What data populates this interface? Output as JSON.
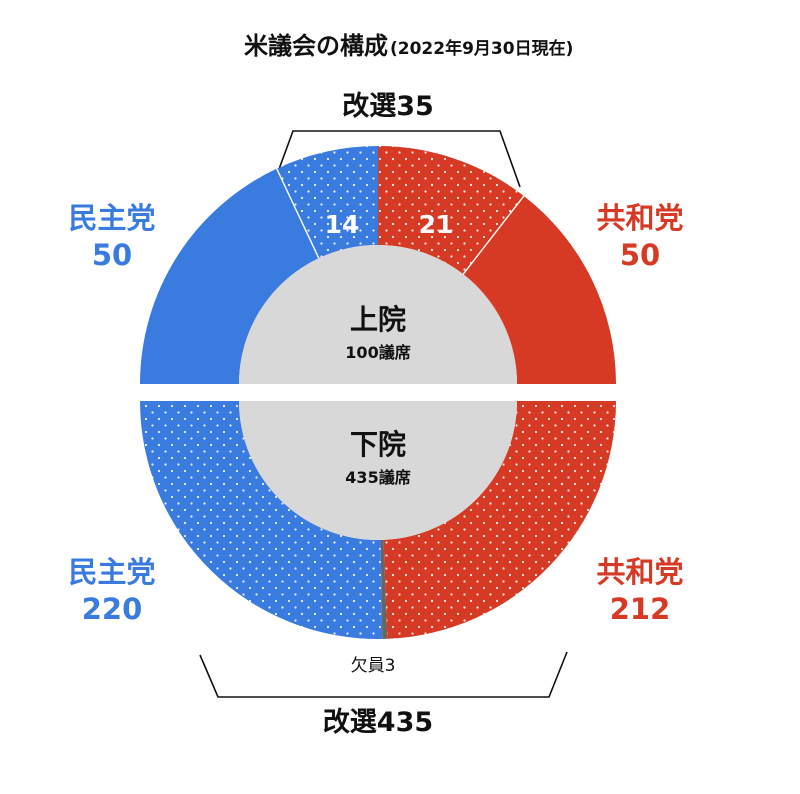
{
  "chart_data": [
    {
      "type": "pie",
      "title": "米議会の構成",
      "subtitle": "(2022年9月30日現在)",
      "chamber": "上院",
      "seats_label": "100議席",
      "total": 100,
      "series": [
        {
          "name": "民主党",
          "value": 50,
          "label": "50",
          "up_for_election": 14
        },
        {
          "name": "共和党",
          "value": 50,
          "label": "50",
          "up_for_election": 21
        }
      ],
      "election_label": "改選35",
      "election_value_labels": [
        "14",
        "21"
      ]
    },
    {
      "type": "pie",
      "chamber": "下院",
      "seats_label": "435議席",
      "total": 435,
      "series": [
        {
          "name": "民主党",
          "value": 220,
          "label": "220"
        },
        {
          "name": "共和党",
          "value": 212,
          "label": "212"
        },
        {
          "name": "欠員",
          "value": 3,
          "label": "欠員3"
        }
      ],
      "election_label": "改選435"
    }
  ],
  "colors": {
    "democrat": "#3a7be0",
    "republican": "#d63a24",
    "vacant": "#666666",
    "center": "#d9d8d8",
    "text": "#111111"
  }
}
